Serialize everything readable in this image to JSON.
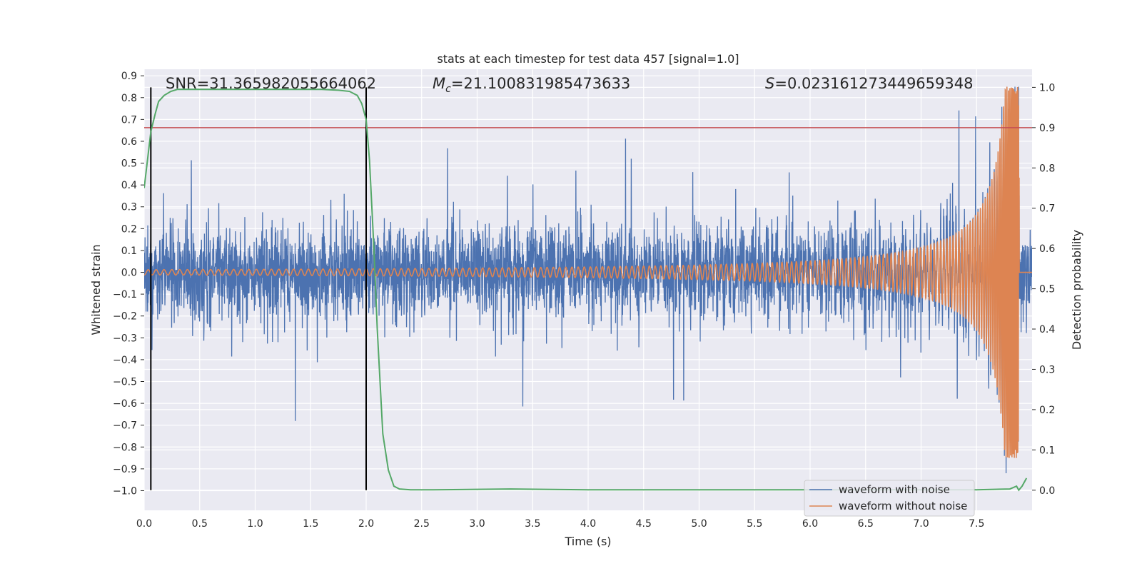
{
  "chart_data": {
    "type": "line",
    "title": "stats at each timestep for test data 457 [signal=1.0]",
    "xlabel": "Time (s)",
    "ylabel_left": "Whitened strain",
    "ylabel_right": "Detection probability",
    "xlim": [
      0.0,
      8.0
    ],
    "ylim_left": [
      -1.09,
      0.93
    ],
    "ylim_right": [
      -0.05,
      1.045
    ],
    "x_ticks": [
      "0.0",
      "0.5",
      "1.0",
      "1.5",
      "2.0",
      "2.5",
      "3.0",
      "3.5",
      "4.0",
      "4.5",
      "5.0",
      "5.5",
      "6.0",
      "6.5",
      "7.0",
      "7.5"
    ],
    "x_tick_values": [
      0.0,
      0.5,
      1.0,
      1.5,
      2.0,
      2.5,
      3.0,
      3.5,
      4.0,
      4.5,
      5.0,
      5.5,
      6.0,
      6.5,
      7.0,
      7.5
    ],
    "y_ticks_left": [
      "0.9",
      "0.8",
      "0.7",
      "0.6",
      "0.5",
      "0.4",
      "0.3",
      "0.2",
      "0.1",
      "0.0",
      "−0.1",
      "−0.2",
      "−0.3",
      "−0.4",
      "−0.5",
      "−0.6",
      "−0.7",
      "−0.8",
      "−0.9",
      "−1.0"
    ],
    "y_tick_values_left": [
      0.9,
      0.8,
      0.7,
      0.6,
      0.5,
      0.4,
      0.3,
      0.2,
      0.1,
      0.0,
      -0.1,
      -0.2,
      -0.3,
      -0.4,
      -0.5,
      -0.6,
      -0.7,
      -0.8,
      -0.9,
      -1.0
    ],
    "y_ticks_right": [
      "1.0",
      "0.9",
      "0.8",
      "0.7",
      "0.6",
      "0.5",
      "0.4",
      "0.3",
      "0.2",
      "0.1",
      "0.0"
    ],
    "y_tick_values_right": [
      1.0,
      0.9,
      0.8,
      0.7,
      0.6,
      0.5,
      0.4,
      0.3,
      0.2,
      0.1,
      0.0
    ],
    "annotations": {
      "snr": "SNR=31.365982055664062",
      "mc_symbol": "M",
      "mc_sub": "c",
      "mc_value": "=21.100831985473633",
      "s_symbol": "S",
      "s_value": "=0.023161273449659348"
    },
    "vertical_lines": [
      0.06,
      2.0
    ],
    "threshold_right": 0.9,
    "merger_time": 7.88,
    "series": [
      {
        "name": "waveform with noise",
        "color": "#4c72b0",
        "axis": "left",
        "noise_sigma": 0.1,
        "max_amplitude": 0.85,
        "min_amplitude": -0.92
      },
      {
        "name": "waveform without noise",
        "color": "#dd8452",
        "axis": "left",
        "start_amplitude": 0.012,
        "peak_amplitude": 0.85,
        "start_freq_hz": 14,
        "merger_time": 7.88
      },
      {
        "name": "detection probability",
        "color": "#55a868",
        "axis": "right",
        "x": [
          0.0,
          0.03,
          0.06,
          0.1,
          0.13,
          0.18,
          0.24,
          0.3,
          0.4,
          0.6,
          0.8,
          1.0,
          1.2,
          1.4,
          1.6,
          1.75,
          1.85,
          1.92,
          1.96,
          2.0,
          2.03,
          2.07,
          2.1,
          2.15,
          2.2,
          2.25,
          2.3,
          2.4,
          2.6,
          3.0,
          3.3,
          3.6,
          4.0,
          4.5,
          5.0,
          6.0,
          7.0,
          7.5,
          7.8,
          7.86,
          7.88,
          7.91,
          7.95
        ],
        "y": [
          0.75,
          0.82,
          0.89,
          0.935,
          0.965,
          0.98,
          0.99,
          0.995,
          0.995,
          0.995,
          0.995,
          0.995,
          0.995,
          0.995,
          0.995,
          0.993,
          0.99,
          0.98,
          0.96,
          0.92,
          0.82,
          0.6,
          0.4,
          0.14,
          0.05,
          0.01,
          0.003,
          0.001,
          0.001,
          0.002,
          0.003,
          0.002,
          0.001,
          0.001,
          0.001,
          0.001,
          0.001,
          0.001,
          0.003,
          0.01,
          0.0,
          0.01,
          0.03
        ]
      }
    ],
    "threshold_color": "#c44e52",
    "vline_color": "#000000",
    "legend_location": "lower-right",
    "grid": true,
    "background": "#eaeaf2"
  }
}
